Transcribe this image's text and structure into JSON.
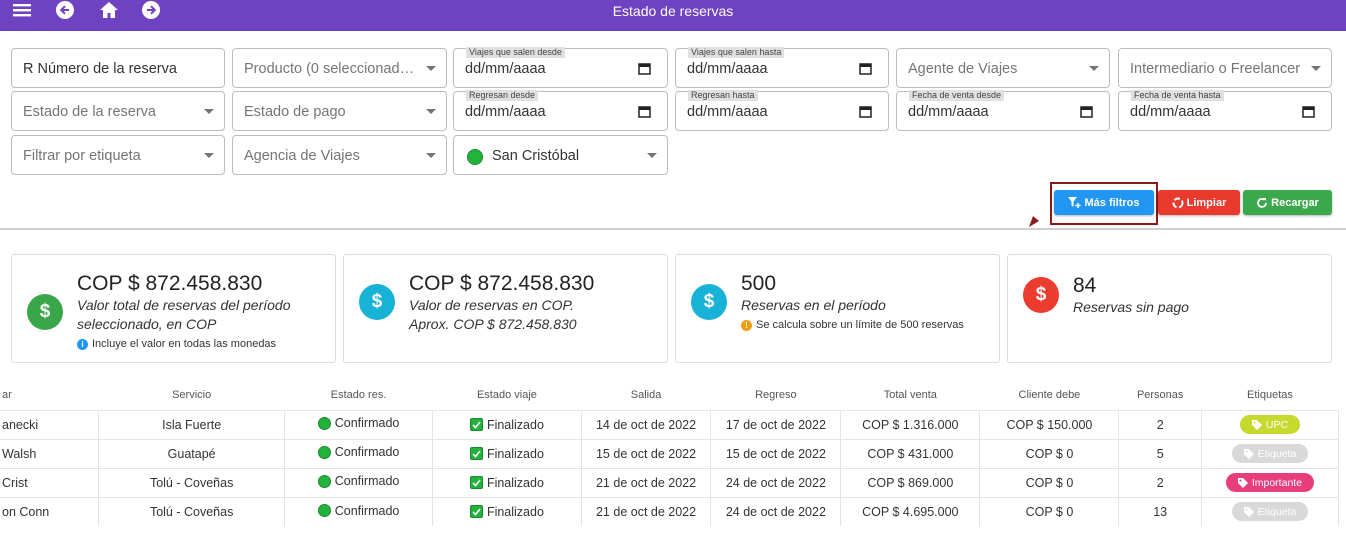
{
  "header": {
    "title": "Estado de reservas"
  },
  "filters": {
    "reserva_number": "R Número de la reserva",
    "producto": "Producto (0 seleccionad…",
    "salen_desde_label": "Viajes que salen desde",
    "salen_desde_value": "dd/mm/aaaa",
    "salen_hasta_label": "Viajes que salen hasta",
    "salen_hasta_value": "dd/mm/aaaa",
    "agente": "Agente de Viajes",
    "intermediario": "Intermediario o Freelancer",
    "estado_reserva": "Estado de la reserva",
    "estado_pago": "Estado de pago",
    "regresan_desde_label": "Regresan desde",
    "regresan_desde_value": "dd/mm/aaaa",
    "regresan_hasta_label": "Regresan hasta",
    "regresan_hasta_value": "dd/mm/aaaa",
    "venta_desde_label": "Fecha de venta desde",
    "venta_desde_value": "dd/mm/aaaa",
    "venta_hasta_label": "Fecha de venta hasta",
    "venta_hasta_value": "dd/mm/aaaa",
    "etiqueta": "Filtrar por etiqueta",
    "agencia": "Agencia de Viajes",
    "ubicacion": "San Cristóbal"
  },
  "actions": {
    "mas_filtros": "Más filtros",
    "limpiar": "Limpiar",
    "recargar": "Recargar"
  },
  "cards": [
    {
      "amount": "COP $ 872.458.830",
      "line1": "Valor total de reservas del período",
      "line2": "seleccionado, en COP",
      "note": "Incluye el valor en todas las monedas",
      "color": "#3aa64a"
    },
    {
      "amount": "COP $ 872.458.830",
      "line1": "Valor de reservas en COP.",
      "line2": "Aprox. COP $ 872.458.830",
      "color": "#17b2d6"
    },
    {
      "amount": "500",
      "line1": "Reservas en el período",
      "note": "Se calcula sobre un límite de 500 reservas",
      "color": "#17b2d6"
    },
    {
      "amount": "84",
      "line1": "Reservas sin pago",
      "color": "#ec3b2f"
    }
  ],
  "table": {
    "headers": [
      "ar",
      "Servicio",
      "Estado res.",
      "Estado viaje",
      "Salida",
      "Regreso",
      "Total venta",
      "Cliente debe",
      "Personas",
      "Etiquetas"
    ],
    "rows": [
      {
        "cliente": "anecki",
        "servicio": "Isla Fuerte",
        "estado_res": "Confirmado",
        "estado_viaje": "Finalizado",
        "salida": "14 de oct de 2022",
        "regreso": "17 de oct de 2022",
        "total": "COP $ 1.316.000",
        "debe": "COP $ 150.000",
        "personas": "2",
        "tag": "UPC",
        "tag_color": "#c5d92e"
      },
      {
        "cliente": "Walsh",
        "servicio": "Guatapé",
        "estado_res": "Confirmado",
        "estado_viaje": "Finalizado",
        "salida": "15 de oct de 2022",
        "regreso": "15 de oct de 2022",
        "total": "COP $ 431.000",
        "debe": "COP $ 0",
        "personas": "5",
        "tag": "Etiqueta",
        "tag_color": "#d9d9d9"
      },
      {
        "cliente": "Crist",
        "servicio": "Tolú - Coveñas",
        "estado_res": "Confirmado",
        "estado_viaje": "Finalizado",
        "salida": "21 de oct de 2022",
        "regreso": "24 de oct de 2022",
        "total": "COP $ 869.000",
        "debe": "COP $ 0",
        "personas": "2",
        "tag": "Importante",
        "tag_color": "#e83e7b"
      },
      {
        "cliente": "on Conn",
        "servicio": "Tolú - Coveñas",
        "estado_res": "Confirmado",
        "estado_viaje": "Finalizado",
        "salida": "21 de oct de 2022",
        "regreso": "24 de oct de 2022",
        "total": "COP $ 4.695.000",
        "debe": "COP $ 0",
        "personas": "13",
        "tag": "Etiqueta",
        "tag_color": "#d9d9d9"
      }
    ]
  }
}
